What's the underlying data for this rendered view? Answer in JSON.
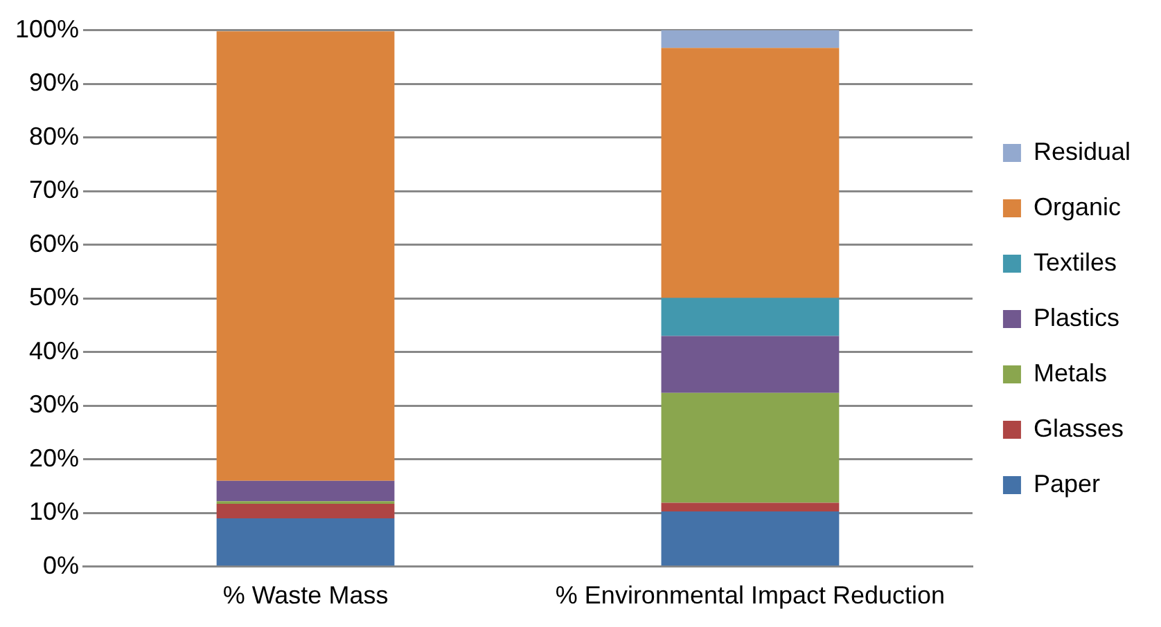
{
  "chart_data": {
    "type": "bar",
    "stacked": true,
    "categories": [
      "% Waste Mass",
      "% Environmental Impact Reduction"
    ],
    "series": [
      {
        "name": "Paper",
        "color": "#4472a8",
        "values": [
          9.0,
          10.3
        ]
      },
      {
        "name": "Glasses",
        "color": "#ae4544",
        "values": [
          2.7,
          1.6
        ]
      },
      {
        "name": "Metals",
        "color": "#8aa64e",
        "values": [
          0.5,
          20.5
        ]
      },
      {
        "name": "Plastics",
        "color": "#71588f",
        "values": [
          3.8,
          10.6
        ]
      },
      {
        "name": "Textiles",
        "color": "#4298ae",
        "values": [
          0,
          7.1
        ]
      },
      {
        "name": "Organic",
        "color": "#db843d",
        "values": [
          83.8,
          46.6
        ]
      },
      {
        "name": "Residual",
        "color": "#93a9cf",
        "values": [
          0,
          3.3
        ]
      }
    ],
    "ylim": [
      0,
      100
    ],
    "yticks": [
      {
        "value": 0,
        "label": "0%"
      },
      {
        "value": 10,
        "label": "10%"
      },
      {
        "value": 20,
        "label": "20%"
      },
      {
        "value": 30,
        "label": "30%"
      },
      {
        "value": 40,
        "label": "40%"
      },
      {
        "value": 50,
        "label": "50%"
      },
      {
        "value": 60,
        "label": "60%"
      },
      {
        "value": 70,
        "label": "70%"
      },
      {
        "value": 80,
        "label": "80%"
      },
      {
        "value": 90,
        "label": "90%"
      },
      {
        "value": 100,
        "label": "100%"
      }
    ],
    "grid": "y",
    "legend": "right"
  }
}
